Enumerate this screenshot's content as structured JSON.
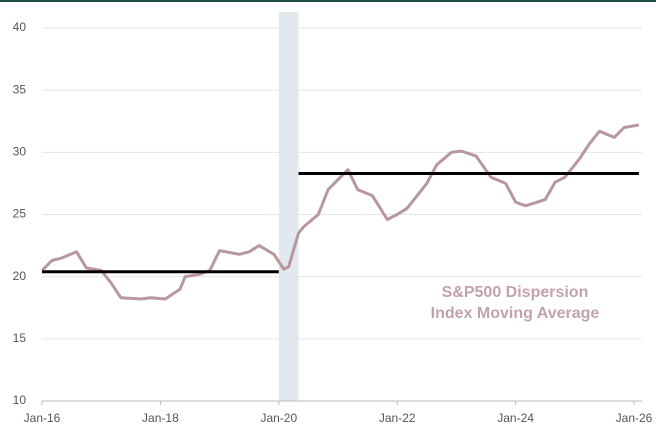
{
  "chart_data": {
    "type": "line",
    "annotation": [
      "S&P500 Dispersion",
      "Index Moving Average"
    ],
    "x": [
      "2016-01",
      "2016-03",
      "2016-05",
      "2016-08",
      "2016-10",
      "2017-01",
      "2017-03",
      "2017-05",
      "2017-09",
      "2017-11",
      "2018-02",
      "2018-05",
      "2018-06",
      "2018-09",
      "2018-11",
      "2019-01",
      "2019-05",
      "2019-07",
      "2019-09",
      "2019-12",
      "2020-02",
      "2020-03",
      "2020-05",
      "2020-06",
      "2020-09",
      "2020-11",
      "2021-03",
      "2021-05",
      "2021-08",
      "2021-11",
      "2022-01",
      "2022-03",
      "2022-07",
      "2022-09",
      "2022-12",
      "2023-02",
      "2023-05",
      "2023-08",
      "2023-11",
      "2024-01",
      "2024-03",
      "2024-07",
      "2024-09",
      "2024-11",
      "2025-02",
      "2025-04",
      "2025-06",
      "2025-09",
      "2025-11",
      "2026-02"
    ],
    "series": [
      {
        "name": "S&P500 Dispersion Index Moving Average",
        "color": "#b8979f",
        "values": [
          20.5,
          21.3,
          21.5,
          22.0,
          20.7,
          20.5,
          19.5,
          18.3,
          18.2,
          18.3,
          18.2,
          19.0,
          20.0,
          20.2,
          20.5,
          22.1,
          21.8,
          22.0,
          22.5,
          21.8,
          20.6,
          20.8,
          23.5,
          24.0,
          25.0,
          27.0,
          28.6,
          27.0,
          26.5,
          24.6,
          25.0,
          25.5,
          27.5,
          29.0,
          30.0,
          30.1,
          29.7,
          28.0,
          27.5,
          26.0,
          25.7,
          26.2,
          27.6,
          28.0,
          29.5,
          30.7,
          31.7,
          31.2,
          32.0,
          32.2
        ]
      }
    ],
    "reference_lines": [
      {
        "value": 20.4,
        "x": [
          "2016-01",
          "2020-01"
        ],
        "color": "#000000"
      },
      {
        "value": 28.3,
        "x": [
          "2020-05",
          "2026-02"
        ],
        "color": "#000000"
      }
    ],
    "shaded_span": {
      "x": [
        "2020-01",
        "2020-05"
      ],
      "color": "#e2e9ee"
    },
    "xlim": [
      "2016-01",
      "2026-01"
    ],
    "xticks": [
      {
        "value": "2016-01",
        "label": "Jan-16"
      },
      {
        "value": "2018-01",
        "label": "Jan-18"
      },
      {
        "value": "2020-01",
        "label": "Jan-20"
      },
      {
        "value": "2022-01",
        "label": "Jan-22"
      },
      {
        "value": "2024-01",
        "label": "Jan-24"
      },
      {
        "value": "2026-01",
        "label": "Jan-26"
      }
    ],
    "ylim": [
      10,
      40
    ],
    "yticks": [
      10,
      15,
      20,
      25,
      30,
      35,
      40
    ],
    "grid": true
  }
}
